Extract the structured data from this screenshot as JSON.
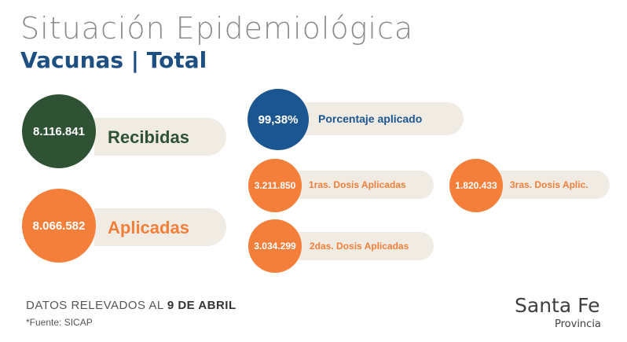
{
  "header": {
    "title": "Situación Epidemiológica",
    "subtitle": "Vacunas | Total"
  },
  "stats": {
    "recibidas": {
      "value": "8.116.841",
      "label": "Recibidas"
    },
    "aplicadas": {
      "value": "8.066.582",
      "label": "Aplicadas"
    },
    "porcentaje": {
      "value": "99,38%",
      "label": "Porcentaje aplicado"
    },
    "dosis1": {
      "value": "3.211.850",
      "label": "1ras. Dosis Aplicadas"
    },
    "dosis2": {
      "value": "3.034.299",
      "label": "2das. Dosis Aplicadas"
    },
    "dosis3": {
      "value": "1.820.433",
      "label": "3ras. Dosis Aplic."
    }
  },
  "footer": {
    "datos_prefix": "DATOS RELEVADOS AL ",
    "datos_date": "9 DE ABRIL",
    "fuente": "*Fuente: SICAP"
  },
  "logo": {
    "main": "Santa Fe",
    "sub": "Provincia"
  },
  "colors": {
    "green": "#2e5233",
    "orange": "#f47f3a",
    "blue": "#1b5690",
    "pill": "#f0ebe3"
  }
}
